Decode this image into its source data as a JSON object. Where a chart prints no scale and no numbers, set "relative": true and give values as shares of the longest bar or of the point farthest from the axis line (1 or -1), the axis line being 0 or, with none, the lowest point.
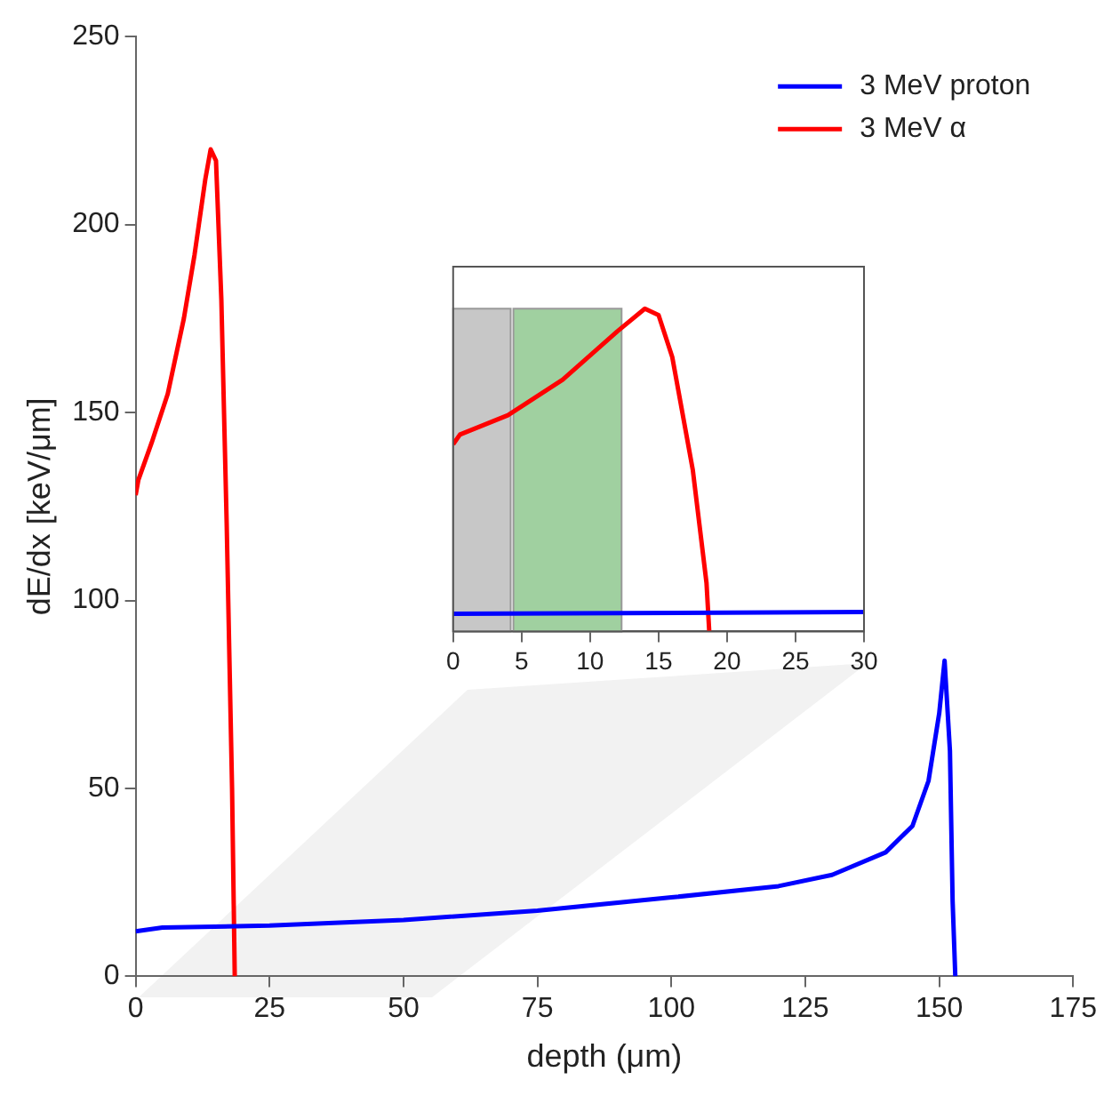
{
  "chart_data": [
    {
      "type": "line",
      "xlabel": "depth (μm)",
      "ylabel": "dE/dx [keV/μm]",
      "xlim": [
        0,
        175
      ],
      "xticks": [
        0,
        25,
        50,
        75,
        100,
        125,
        150,
        175
      ],
      "ylim": [
        0,
        250
      ],
      "yticks": [
        0,
        50,
        100,
        150,
        200,
        250
      ],
      "legend": "top right",
      "grid": false,
      "series": [
        {
          "name": "3 MeV proton",
          "color": "#0000ff",
          "x": [
            0,
            5,
            25,
            50,
            75,
            100,
            120,
            130,
            140,
            145,
            148,
            150,
            151,
            152,
            152.5,
            153
          ],
          "values": [
            12,
            13,
            13.5,
            15,
            17.5,
            21,
            24,
            27,
            33,
            40,
            52,
            70,
            84,
            60,
            20,
            0
          ]
        },
        {
          "name": "3 MeV α",
          "color": "#ff0000",
          "x": [
            0,
            0.5,
            3,
            6,
            9,
            11,
            13,
            14,
            15,
            16,
            17,
            18,
            18.5
          ],
          "values": [
            128,
            132,
            142,
            155,
            175,
            192,
            212,
            220,
            217,
            180,
            120,
            50,
            0
          ]
        }
      ]
    },
    {
      "type": "line",
      "relative": true,
      "tick_labels": "x",
      "xlim": [
        0,
        30
      ],
      "xticks": [
        0,
        5,
        10,
        15,
        20,
        25,
        30
      ],
      "grid": false,
      "bands": [
        {
          "axis": "x",
          "from": 0,
          "to": 4.2,
          "color": "#b4b4b4"
        },
        {
          "axis": "x",
          "from": 4.4,
          "to": 12.3,
          "color": "#80c080"
        }
      ],
      "series": [
        {
          "color": "#0000ff",
          "x": [
            0,
            30
          ],
          "values": [
            0.055,
            0.06
          ]
        },
        {
          "color": "#ff0000",
          "x": [
            0,
            0.5,
            4,
            8,
            12,
            14,
            15,
            16,
            17.5,
            18.5,
            18.7
          ],
          "values": [
            0.58,
            0.61,
            0.67,
            0.78,
            0.93,
            1,
            0.98,
            0.85,
            0.5,
            0.15,
            0
          ]
        }
      ]
    }
  ]
}
